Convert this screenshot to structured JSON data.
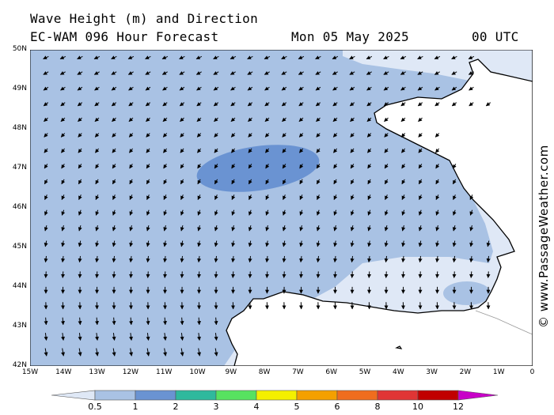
{
  "header": {
    "title": "Wave Height (m) and Direction",
    "model": "EC-WAM 096 Hour Forecast",
    "date": "Mon 05 May 2025",
    "time": "00 UTC"
  },
  "credit": "© www.PassageWeather.com",
  "axes": {
    "lat_labels": [
      "50N",
      "49N",
      "48N",
      "47N",
      "46N",
      "45N",
      "44N",
      "43N",
      "42N"
    ],
    "lon_labels": [
      "15W",
      "14W",
      "13W",
      "12W",
      "11W",
      "10W",
      "9W",
      "8W",
      "7W",
      "6W",
      "5W",
      "4W",
      "3W",
      "2W",
      "1W",
      "0"
    ]
  },
  "legend": {
    "labels": [
      "0.5",
      "1",
      "2",
      "3",
      "4",
      "5",
      "6",
      "8",
      "10",
      "12"
    ],
    "colors": [
      "#dfe8f6",
      "#a9c2e4",
      "#6a93d2",
      "#2fb99d",
      "#57e260",
      "#f4f000",
      "#f4a000",
      "#f06d1e",
      "#e03535",
      "#c10000",
      "#c800c8"
    ]
  },
  "map": {
    "sea_colors": {
      "band_0_5_1": "#dfe8f6",
      "band_1_2": "#a9c2e4",
      "band_2_3": "#6a93d2"
    },
    "land_color": "#ffffff",
    "coast_color": "#000000"
  }
}
